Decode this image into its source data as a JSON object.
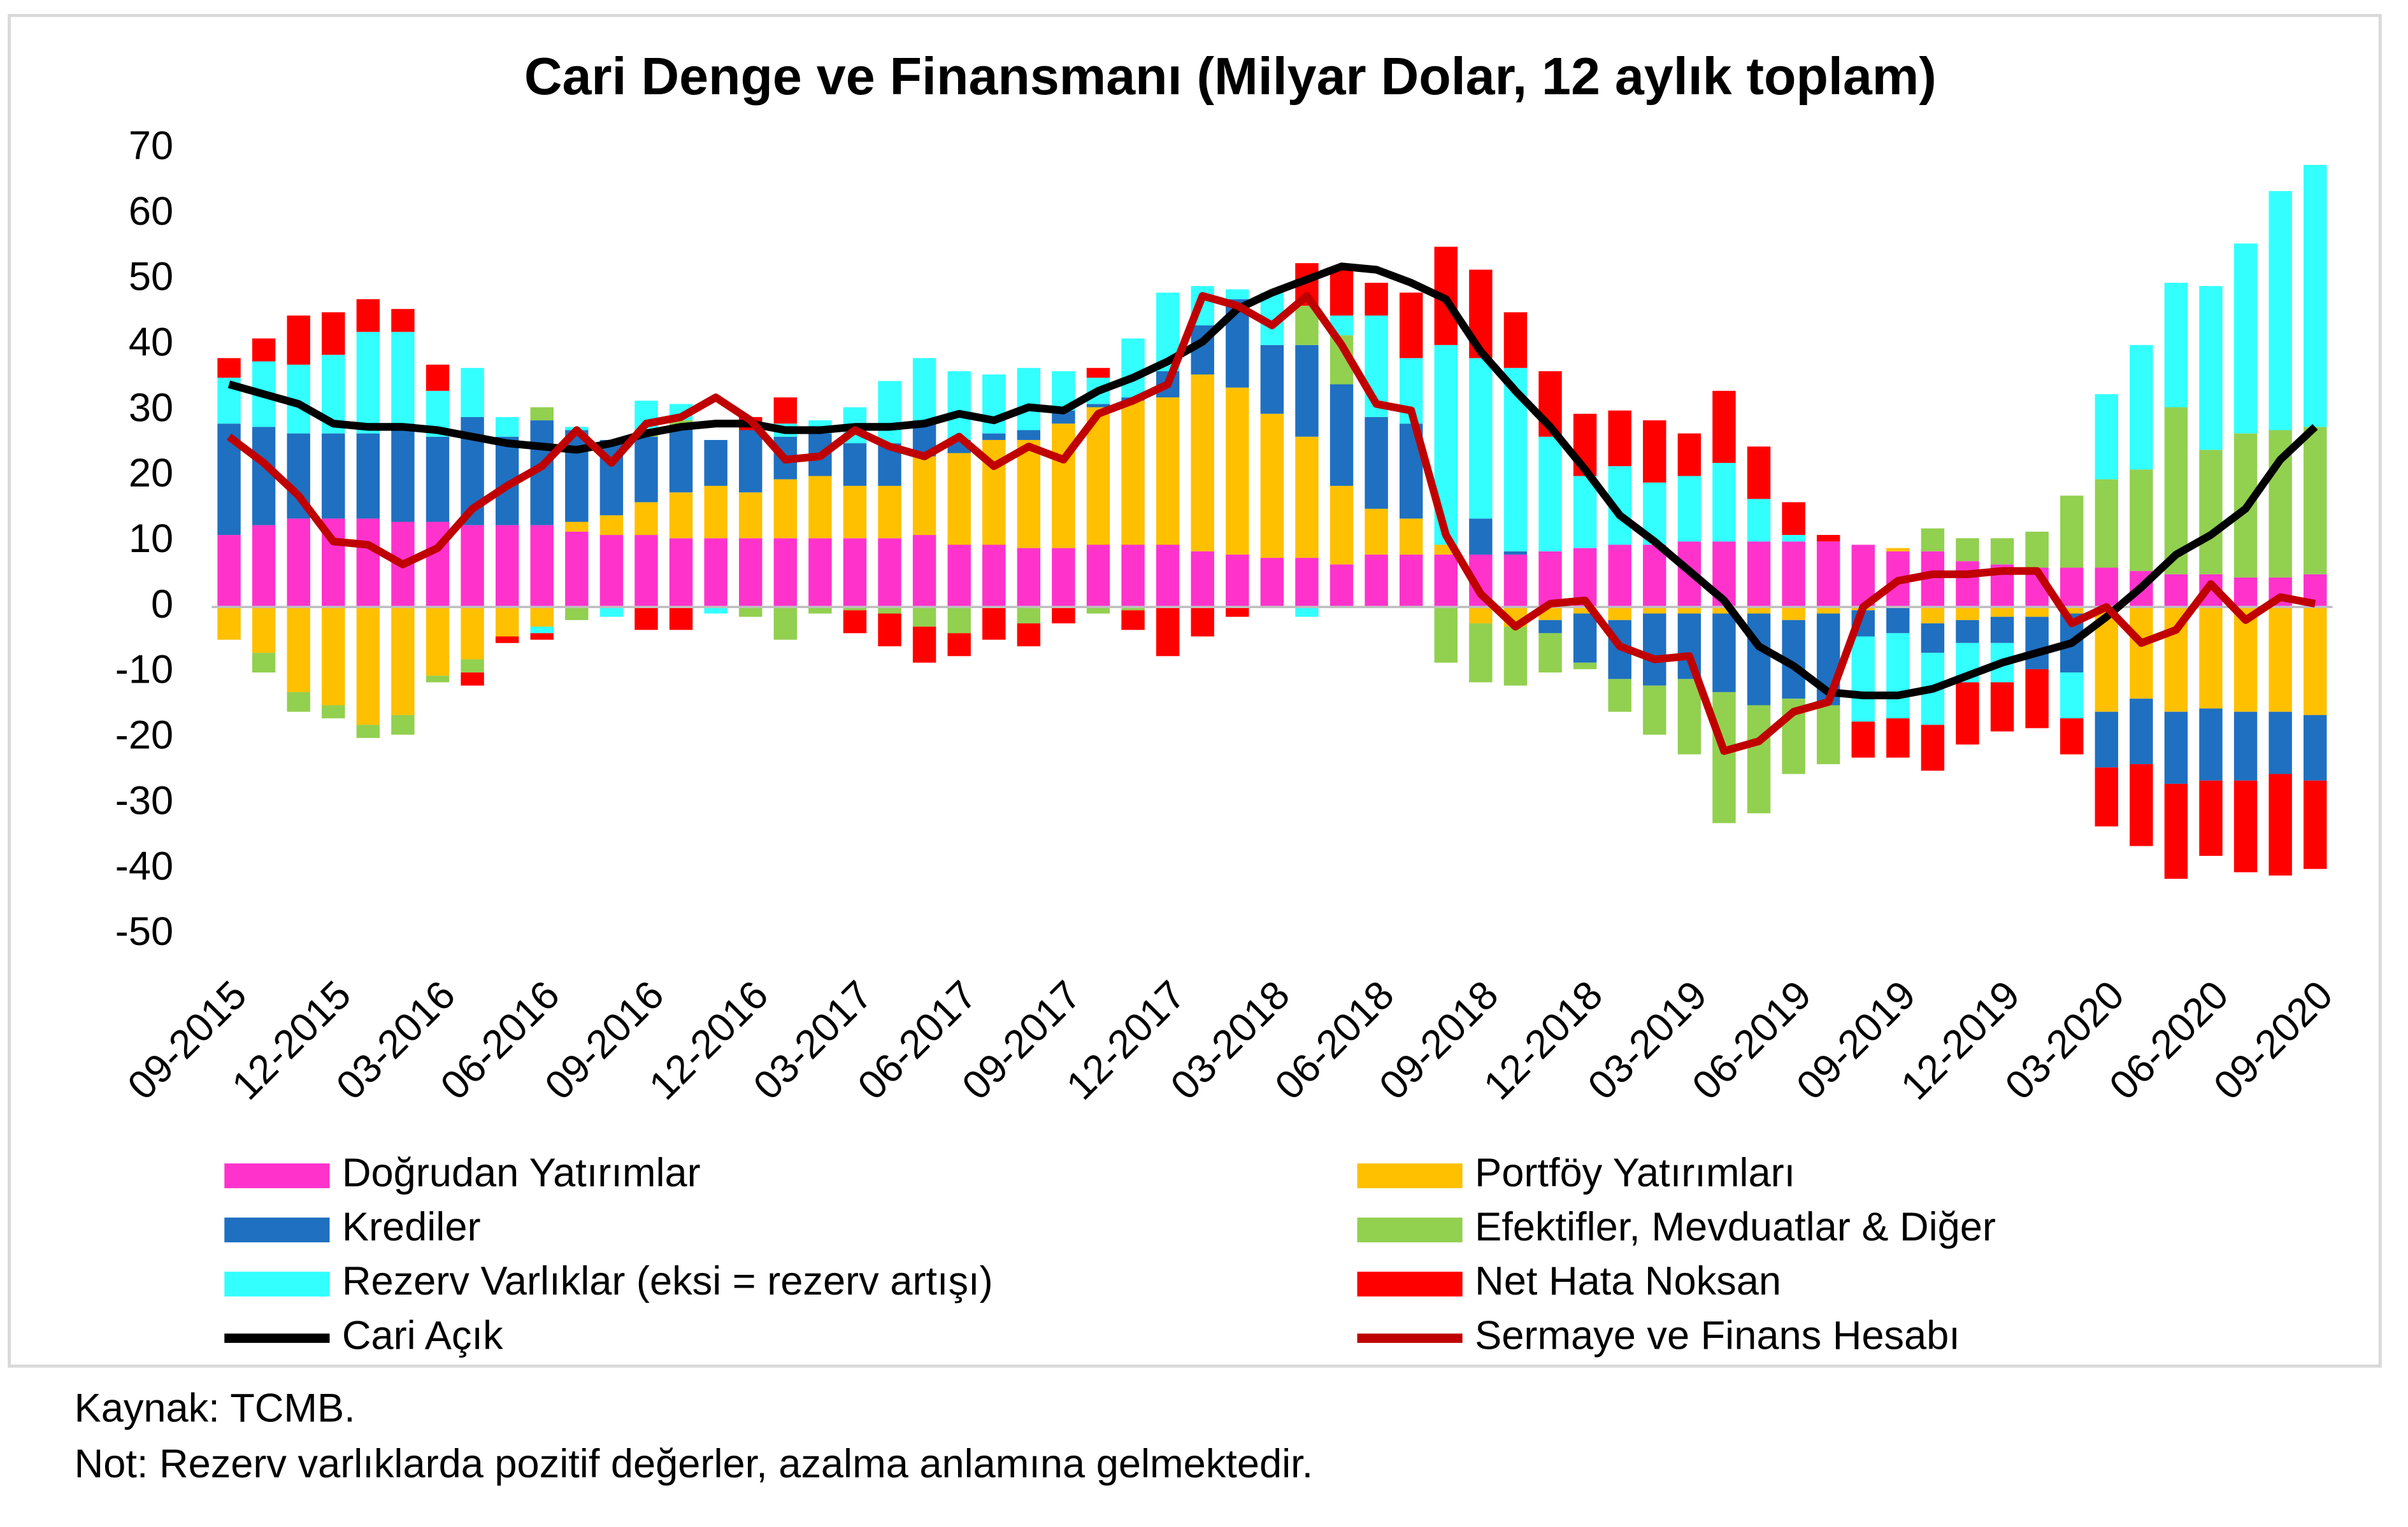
{
  "chart_data": {
    "type": "bar",
    "stacked": true,
    "title": "Cari Denge ve Finansmanı (Milyar Dolar, 12 aylık toplam)",
    "categories": [
      "09-2015",
      null,
      null,
      "12-2015",
      null,
      null,
      "03-2016",
      null,
      null,
      "06-2016",
      null,
      null,
      "09-2016",
      null,
      null,
      "12-2016",
      null,
      null,
      "03-2017",
      null,
      null,
      "06-2017",
      null,
      null,
      "09-2017",
      null,
      null,
      "12-2017",
      null,
      null,
      "03-2018",
      null,
      null,
      "06-2018",
      null,
      null,
      "09-2018",
      null,
      null,
      "12-2018",
      null,
      null,
      "03-2019",
      null,
      null,
      "06-2019",
      null,
      null,
      "09-2019",
      null,
      null,
      "12-2019",
      null,
      null,
      "03-2020",
      null,
      null,
      "06-2020",
      null,
      null,
      "09-2020"
    ],
    "ylim": [
      -50,
      70
    ],
    "yticks": [
      -50,
      -40,
      -30,
      -20,
      -10,
      0,
      10,
      20,
      30,
      40,
      50,
      60,
      70
    ],
    "series": [
      {
        "name": "Doğrudan Yatırımlar",
        "type": "bar",
        "color": "#ff33cc",
        "values": [
          11,
          12.5,
          13.5,
          13.5,
          13.5,
          13,
          13,
          12.5,
          12.5,
          12.5,
          11.5,
          11,
          11,
          10.5,
          10.5,
          10.5,
          10.5,
          10.5,
          10.5,
          10.5,
          11,
          9.5,
          9.5,
          9,
          9,
          9.5,
          9.5,
          9.5,
          8.5,
          8,
          7.5,
          7.5,
          6.5,
          8,
          8,
          8,
          8,
          8,
          8.5,
          9,
          9.5,
          9.5,
          10,
          10,
          10,
          10,
          10,
          9.5,
          8.5,
          8.5,
          7,
          6.5,
          6,
          6,
          6,
          5.5,
          5,
          5,
          4.5,
          4.5,
          5
        ]
      },
      {
        "name": "Portföy Yatırımları",
        "type": "bar",
        "color": "#ffc000",
        "values": [
          -5,
          -7,
          -13,
          -15,
          -18,
          -16.5,
          -10.5,
          -8,
          -4.5,
          -3,
          1.5,
          3,
          5,
          7,
          8,
          7,
          9,
          9.5,
          8,
          8,
          12,
          14,
          16,
          16.5,
          19,
          21,
          22,
          22.5,
          27,
          25.5,
          22,
          18.5,
          12,
          7,
          5.5,
          1.5,
          -2.5,
          -3,
          -2,
          -1,
          -2,
          -1,
          -1,
          -1,
          -1,
          -2,
          -1,
          -0.5,
          0.5,
          -2.5,
          -2,
          -1.5,
          -1.5,
          -1,
          -16,
          -14,
          -16,
          -15.5,
          -16,
          -16,
          -16.5
        ]
      },
      {
        "name": "Krediler",
        "type": "bar",
        "color": "#1f70c1",
        "values": [
          17,
          15,
          13,
          13,
          13,
          15,
          13,
          16.5,
          13.5,
          16,
          14,
          11.5,
          10,
          10,
          7,
          9.5,
          6.5,
          6.5,
          6.5,
          6.5,
          5.5,
          2,
          1,
          1.5,
          2,
          0.5,
          0.5,
          4,
          7.5,
          13.5,
          10.5,
          14,
          15.5,
          14,
          14.5,
          0,
          5.5,
          0.5,
          -2,
          -7.5,
          -9,
          -11,
          -10,
          -12,
          -14,
          -12,
          -14,
          -4,
          -4,
          -4.5,
          -3.5,
          -4,
          -8,
          -9,
          -8.5,
          -10,
          -11,
          -11,
          -10.5,
          -9.5,
          -10
        ]
      },
      {
        "name": "Efektifler, Mevduatlar & Diğer",
        "type": "bar",
        "color": "#92d050",
        "values": [
          0,
          -3,
          -3,
          -2,
          -2,
          -3,
          -1,
          -2,
          0,
          2,
          -2,
          0,
          1,
          1,
          0,
          -1.5,
          -5,
          -1,
          -0.5,
          -1,
          -3,
          -4,
          0,
          -2.5,
          0,
          -1,
          -0.5,
          0,
          0,
          0,
          0,
          6,
          7.5,
          0,
          0,
          -8.5,
          -9,
          -9,
          -6,
          -1,
          -5,
          -7.5,
          -11.5,
          -20,
          -16.5,
          -11.5,
          -9,
          0,
          0,
          3.5,
          3.5,
          4,
          5.5,
          11,
          13.5,
          15.5,
          25.5,
          19,
          22,
          22.5,
          22.5
        ]
      },
      {
        "name": "Rezerv Varlıklar (eksi = rezerv artışı)",
        "type": "bar",
        "color": "#33ffff",
        "values": [
          7,
          10,
          10.5,
          12,
          15.5,
          14,
          7,
          7.5,
          3,
          -1,
          0.5,
          -1.5,
          4.5,
          2.5,
          -1,
          0,
          2,
          2,
          5.5,
          9.5,
          9.5,
          10.5,
          9,
          9.5,
          6,
          4,
          9,
          12,
          6,
          1.5,
          8,
          -1.5,
          3,
          15.5,
          10,
          30.5,
          24.5,
          28,
          17.5,
          11,
          12,
          9.5,
          10,
          12,
          6.5,
          1,
          0,
          -13,
          -13,
          -11,
          -6,
          -6,
          0,
          -7,
          13,
          19,
          19,
          25,
          29,
          36.5,
          40
        ]
      },
      {
        "name": "Net Hata Noksan",
        "type": "bar",
        "color": "#ff0000",
        "values": [
          3,
          3.5,
          7.5,
          6.5,
          5,
          3.5,
          4,
          -2,
          -1,
          -1,
          0,
          0,
          -3.5,
          -3.5,
          0,
          2,
          4,
          0,
          -3.5,
          -5,
          -5.5,
          -3.5,
          -5,
          -3.5,
          -2.5,
          1.5,
          -3,
          -7.5,
          -4.5,
          -1.5,
          0,
          6.5,
          7.5,
          5,
          10,
          15,
          13.5,
          8.5,
          10,
          9.5,
          8.5,
          9.5,
          6.5,
          11,
          8,
          5,
          1,
          -5.5,
          -6,
          -7,
          -9.5,
          -7.5,
          -9,
          -5.5,
          -9,
          -12.5,
          -14.5,
          -11.5,
          -14,
          -15.5,
          -13.5
        ]
      },
      {
        "name": "Cari Açık",
        "type": "line",
        "color": "#000000",
        "values": [
          34,
          32.5,
          31,
          28,
          27.5,
          27.5,
          27,
          26,
          25,
          24.5,
          24,
          25,
          26.5,
          27.5,
          28,
          28,
          27,
          27,
          27.5,
          27.5,
          28,
          29.5,
          28.5,
          30.5,
          30,
          33,
          35,
          37.5,
          40.5,
          45.5,
          48,
          50,
          52,
          51.5,
          49.5,
          47,
          39,
          33,
          27.5,
          21,
          14,
          10,
          5.5,
          1,
          -6,
          -9,
          -13,
          -13.5,
          -13.5,
          -12.5,
          -10.5,
          -8.5,
          -7,
          -5.5,
          -1.5,
          3,
          8,
          11,
          15,
          22.5,
          27.5
        ]
      },
      {
        "name": "Sermaye ve Finans Hesabı",
        "type": "line",
        "color": "#c00000",
        "values": [
          26,
          22,
          17,
          10,
          9.5,
          6.5,
          9,
          15,
          18.5,
          21.5,
          27,
          22,
          28,
          29,
          32,
          28.5,
          22.5,
          23,
          27,
          24.5,
          23,
          26,
          21.5,
          24.5,
          22.5,
          29.5,
          31.5,
          34,
          47.5,
          46,
          43,
          47.5,
          40,
          31,
          30,
          11,
          2,
          -3,
          0.5,
          1,
          -6,
          -8,
          -7.5,
          -22,
          -20.5,
          -16,
          -14.5,
          0,
          4,
          5,
          5,
          5.5,
          5.5,
          -2.5,
          0,
          -5.5,
          -3.5,
          3.5,
          -2,
          1.5,
          0.5
        ]
      }
    ],
    "source": "Kaynak: TCMB.",
    "note": "Not: Rezerv varlıklarda pozitif değerler, azalma anlamına gelmektedir."
  }
}
